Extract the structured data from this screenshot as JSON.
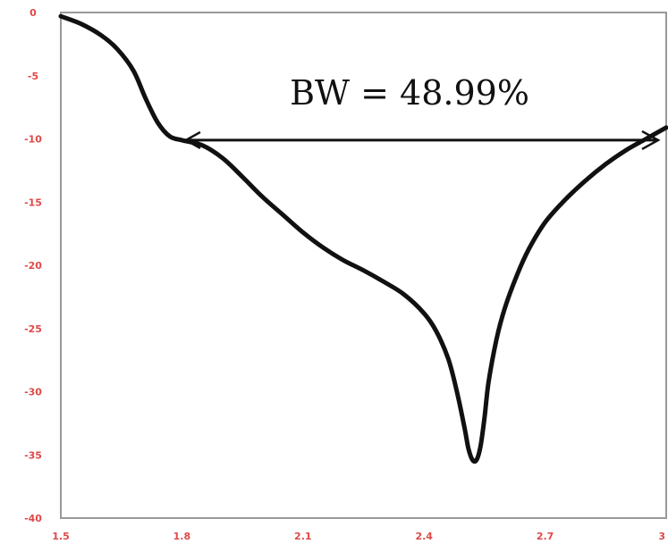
{
  "chart_data": {
    "type": "line",
    "title": "",
    "xlabel": "",
    "ylabel": "",
    "xlim": [
      1.5,
      3.0
    ],
    "ylim": [
      -40,
      0
    ],
    "x_ticks": [
      1.5,
      1.8,
      2.1,
      2.4,
      2.7,
      3.0
    ],
    "x_tick_labels": [
      "1.5",
      "1.8",
      "2.1",
      "2.4",
      "2.7",
      "3"
    ],
    "y_ticks": [
      0,
      -5,
      -10,
      -15,
      -20,
      -25,
      -30,
      -35,
      -40
    ],
    "y_tick_labels": [
      "0",
      "-5",
      "-10",
      "-15",
      "-20",
      "-25",
      "-30",
      "-35",
      "-40"
    ],
    "grid": false,
    "colors": {
      "line": "#111111",
      "tick_labels": "#e04848",
      "frame": "#999999"
    },
    "series": [
      {
        "x": [
          1.5,
          1.55,
          1.6,
          1.64,
          1.68,
          1.71,
          1.74,
          1.77,
          1.8,
          1.85,
          1.9,
          1.95,
          2.0,
          2.05,
          2.1,
          2.15,
          2.2,
          2.25,
          2.3,
          2.35,
          2.4,
          2.43,
          2.46,
          2.48,
          2.5,
          2.51,
          2.52,
          2.53,
          2.54,
          2.55,
          2.56,
          2.58,
          2.6,
          2.63,
          2.66,
          2.7,
          2.75,
          2.8,
          2.85,
          2.9,
          2.95,
          3.0
        ],
        "y": [
          -0.3,
          -0.9,
          -1.8,
          -2.9,
          -4.6,
          -6.8,
          -8.7,
          -9.8,
          -10.1,
          -10.5,
          -11.5,
          -13.0,
          -14.6,
          -16.0,
          -17.4,
          -18.6,
          -19.6,
          -20.4,
          -21.3,
          -22.3,
          -23.8,
          -25.2,
          -27.4,
          -29.8,
          -32.8,
          -34.5,
          -35.4,
          -35.4,
          -34.3,
          -32.0,
          -29.2,
          -25.8,
          -23.4,
          -20.8,
          -18.7,
          -16.6,
          -14.8,
          -13.3,
          -12.0,
          -10.9,
          -10.0,
          -9.1
        ]
      }
    ],
    "annotations": [
      {
        "text": "BW = 48.99%",
        "arrow_from_x": 1.81,
        "arrow_to_x": 2.98,
        "arrow_y": -10.1
      }
    ]
  }
}
